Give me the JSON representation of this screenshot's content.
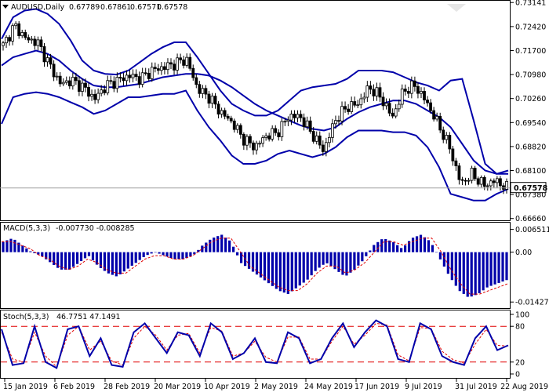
{
  "chart_data": [
    {
      "type": "candlestick",
      "title": "AUDUSD,Daily",
      "ohlc": {
        "open": "0.67789",
        "high": "0.67861",
        "low": "0.67571",
        "close": "0.67578"
      },
      "price_labels": [
        "0.73141",
        "0.72420",
        "0.71700",
        "0.70980",
        "0.70260",
        "0.69540",
        "0.68820",
        "0.68100",
        "0.67380",
        "0.66660"
      ],
      "current_price": "0.67578",
      "ylim": [
        0.6663,
        0.7317
      ],
      "x_labels": [
        "15 Jan 2019",
        "6 Feb 2019",
        "28 Feb 2019",
        "20 Mar 2019",
        "10 Apr 2019",
        "2 May 2019",
        "24 May 2019",
        "17 Jun 2019",
        "9 Jul 2019",
        "31 Jul 2019",
        "22 Aug 2019"
      ],
      "bollinger": {
        "middle": [
          0.7125,
          0.715,
          0.716,
          0.717,
          0.716,
          0.714,
          0.711,
          0.7085,
          0.7065,
          0.706,
          0.706,
          0.7065,
          0.707,
          0.708,
          0.709,
          0.7095,
          0.71,
          0.71,
          0.7095,
          0.708,
          0.706,
          0.7035,
          0.701,
          0.699,
          0.6975,
          0.696,
          0.6945,
          0.6935,
          0.693,
          0.694,
          0.6965,
          0.6985,
          0.7,
          0.701,
          0.702,
          0.702,
          0.701,
          0.699,
          0.697,
          0.694,
          0.689,
          0.684,
          0.681,
          0.68,
          0.68
        ],
        "upper": [
          0.7205,
          0.727,
          0.729,
          0.7295,
          0.728,
          0.725,
          0.72,
          0.714,
          0.711,
          0.71,
          0.7098,
          0.711,
          0.7135,
          0.716,
          0.718,
          0.7195,
          0.7195,
          0.715,
          0.71,
          0.705,
          0.701,
          0.699,
          0.6975,
          0.6975,
          0.699,
          0.702,
          0.705,
          0.706,
          0.7065,
          0.707,
          0.7085,
          0.711,
          0.711,
          0.711,
          0.7105,
          0.709,
          0.7075,
          0.7065,
          0.705,
          0.708,
          0.7085,
          0.696,
          0.683,
          0.68,
          0.681
        ],
        "lower": [
          0.695,
          0.703,
          0.704,
          0.7045,
          0.704,
          0.703,
          0.7015,
          0.7,
          0.698,
          0.699,
          0.701,
          0.703,
          0.703,
          0.7035,
          0.704,
          0.704,
          0.705,
          0.699,
          0.694,
          0.69,
          0.6855,
          0.683,
          0.683,
          0.684,
          0.686,
          0.687,
          0.686,
          0.685,
          0.686,
          0.688,
          0.691,
          0.693,
          0.693,
          0.693,
          0.6925,
          0.6925,
          0.6915,
          0.688,
          0.682,
          0.674,
          0.673,
          0.672,
          0.672,
          0.674,
          0.6755
        ]
      },
      "closes": [
        0.7185,
        0.7245,
        0.7205,
        0.7195,
        0.713,
        0.707,
        0.708,
        0.706,
        0.7025,
        0.7065,
        0.708,
        0.7095,
        0.7085,
        0.711,
        0.712,
        0.713,
        0.7145,
        0.7055,
        0.703,
        0.6985,
        0.6955,
        0.6905,
        0.688,
        0.6915,
        0.6925,
        0.6975,
        0.697,
        0.692,
        0.687,
        0.696,
        0.7,
        0.701,
        0.706,
        0.703,
        0.697,
        0.705,
        0.7065,
        0.7015,
        0.695,
        0.688,
        0.677,
        0.68,
        0.6765,
        0.678,
        0.6758
      ]
    },
    {
      "type": "histogram",
      "title": "MACD(5,3,3)",
      "values_label": "-0.007730 -0.008285",
      "axis_labels": [
        "0.006511",
        "0.00",
        "-0.014279"
      ],
      "ylim": [
        -0.0158,
        0.008
      ],
      "histogram": [
        0.003,
        0.004,
        0.002,
        0.0,
        -0.001,
        -0.003,
        -0.005,
        -0.005,
        -0.003,
        -0.001,
        -0.004,
        -0.006,
        -0.007,
        -0.005,
        -0.003,
        -0.001,
        0.0,
        -0.001,
        -0.002,
        -0.002,
        -0.001,
        0.002,
        0.004,
        0.005,
        0.003,
        -0.003,
        -0.005,
        -0.007,
        -0.009,
        -0.011,
        -0.012,
        -0.01,
        -0.008,
        -0.005,
        -0.003,
        -0.005,
        -0.007,
        -0.005,
        -0.002,
        0.002,
        0.004,
        0.003,
        0.001,
        0.004,
        0.005,
        0.003,
        -0.002,
        -0.007,
        -0.011,
        -0.013,
        -0.012,
        -0.01,
        -0.009,
        -0.008
      ],
      "signal": [
        0.003,
        0.003,
        0.002,
        0.001,
        -0.001,
        -0.002,
        -0.004,
        -0.005,
        -0.004,
        -0.002,
        -0.003,
        -0.005,
        -0.006,
        -0.006,
        -0.004,
        -0.002,
        -0.001,
        -0.001,
        -0.002,
        -0.002,
        -0.001,
        0.001,
        0.003,
        0.004,
        0.004,
        0.0,
        -0.004,
        -0.006,
        -0.008,
        -0.01,
        -0.011,
        -0.011,
        -0.009,
        -0.006,
        -0.004,
        -0.004,
        -0.006,
        -0.005,
        -0.003,
        0.0,
        0.003,
        0.003,
        0.002,
        0.003,
        0.004,
        0.004,
        0.0,
        -0.005,
        -0.009,
        -0.012,
        -0.012,
        -0.011,
        -0.01,
        -0.009
      ]
    },
    {
      "type": "line",
      "title": "Stoch(5,3,3)",
      "values_label": "46.7751 47.1491",
      "axis_labels": [
        "100",
        "80",
        "20",
        "0"
      ],
      "ylim": [
        0,
        100
      ],
      "levels": [
        80,
        20
      ],
      "main": [
        75,
        15,
        18,
        80,
        20,
        10,
        75,
        80,
        30,
        60,
        15,
        12,
        70,
        85,
        60,
        35,
        70,
        65,
        30,
        85,
        70,
        25,
        35,
        60,
        20,
        18,
        70,
        60,
        18,
        25,
        60,
        85,
        45,
        70,
        90,
        80,
        25,
        20,
        85,
        75,
        30,
        20,
        15,
        60,
        80,
        40,
        48
      ],
      "signal": [
        70,
        25,
        20,
        70,
        30,
        12,
        65,
        80,
        40,
        55,
        22,
        15,
        60,
        80,
        65,
        40,
        65,
        68,
        35,
        78,
        72,
        30,
        35,
        55,
        28,
        20,
        62,
        62,
        25,
        25,
        55,
        80,
        50,
        65,
        85,
        82,
        32,
        22,
        78,
        76,
        38,
        24,
        18,
        50,
        75,
        48,
        47
      ]
    }
  ],
  "colors": {
    "series": "#0000aa",
    "signal": "#e00000",
    "candle": "#000000",
    "grid": "#c0c0c0"
  }
}
